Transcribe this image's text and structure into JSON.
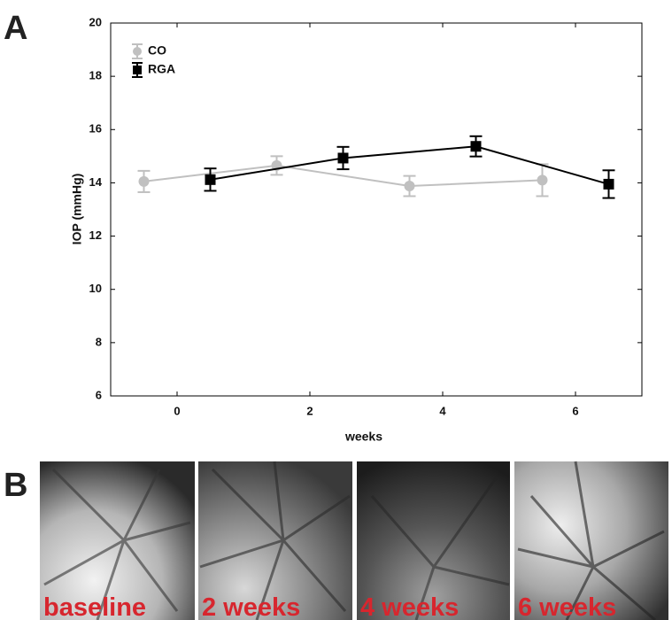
{
  "panel_labels": [
    "A",
    "B"
  ],
  "chart_data": {
    "type": "line",
    "y_label": "IOP (mmHg)",
    "x_label": "weeks",
    "xlim": [
      -1,
      7
    ],
    "xticks": [
      0,
      2,
      4,
      6
    ],
    "ylim": [
      6,
      20
    ],
    "yticks": [
      6,
      8,
      10,
      12,
      14,
      16,
      18,
      20
    ],
    "legend": "upper left",
    "series": [
      {
        "name": "CO",
        "color": "#c0c0c0",
        "marker": "circle",
        "x": [
          -0.5,
          1.5,
          3.5,
          5.5
        ],
        "values": [
          14.05,
          14.65,
          13.88,
          14.1
        ],
        "errors": [
          0.4,
          0.35,
          0.38,
          0.6
        ]
      },
      {
        "name": "RGA",
        "color": "#000000",
        "marker": "square",
        "x": [
          0.5,
          2.5,
          4.5,
          6.5
        ],
        "values": [
          14.12,
          14.93,
          15.37,
          13.95
        ],
        "errors": [
          0.42,
          0.42,
          0.38,
          0.52
        ]
      }
    ]
  },
  "panel_b": {
    "images": [
      {
        "label": "baseline"
      },
      {
        "label": "2 weeks"
      },
      {
        "label": "4 weeks"
      },
      {
        "label": "6 weeks"
      }
    ]
  }
}
